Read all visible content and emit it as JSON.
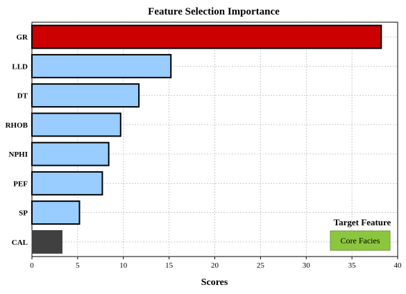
{
  "chart_data": {
    "type": "bar",
    "orientation": "horizontal",
    "title": "Feature Selection Importance",
    "xlabel": "Scores",
    "ylabel": "",
    "xlim": [
      0,
      40
    ],
    "xticks": [
      0,
      5,
      10,
      15,
      20,
      25,
      30,
      35,
      40
    ],
    "grid": true,
    "categories": [
      "GR",
      "LLD",
      "DT",
      "RHOB",
      "NPHI",
      "PEF",
      "SP",
      "CAL"
    ],
    "values": [
      38.2,
      15.2,
      11.7,
      9.7,
      8.4,
      7.7,
      5.2,
      3.3
    ],
    "colors": [
      "#cc0000",
      "#99ccff",
      "#99ccff",
      "#99ccff",
      "#99ccff",
      "#99ccff",
      "#99ccff",
      "#404040"
    ],
    "highlight_label_color": "#dd0000",
    "legend": {
      "title": "Target Feature",
      "label": "Core Facies",
      "color": "#8cc63f",
      "placement": "bottom-right"
    }
  }
}
